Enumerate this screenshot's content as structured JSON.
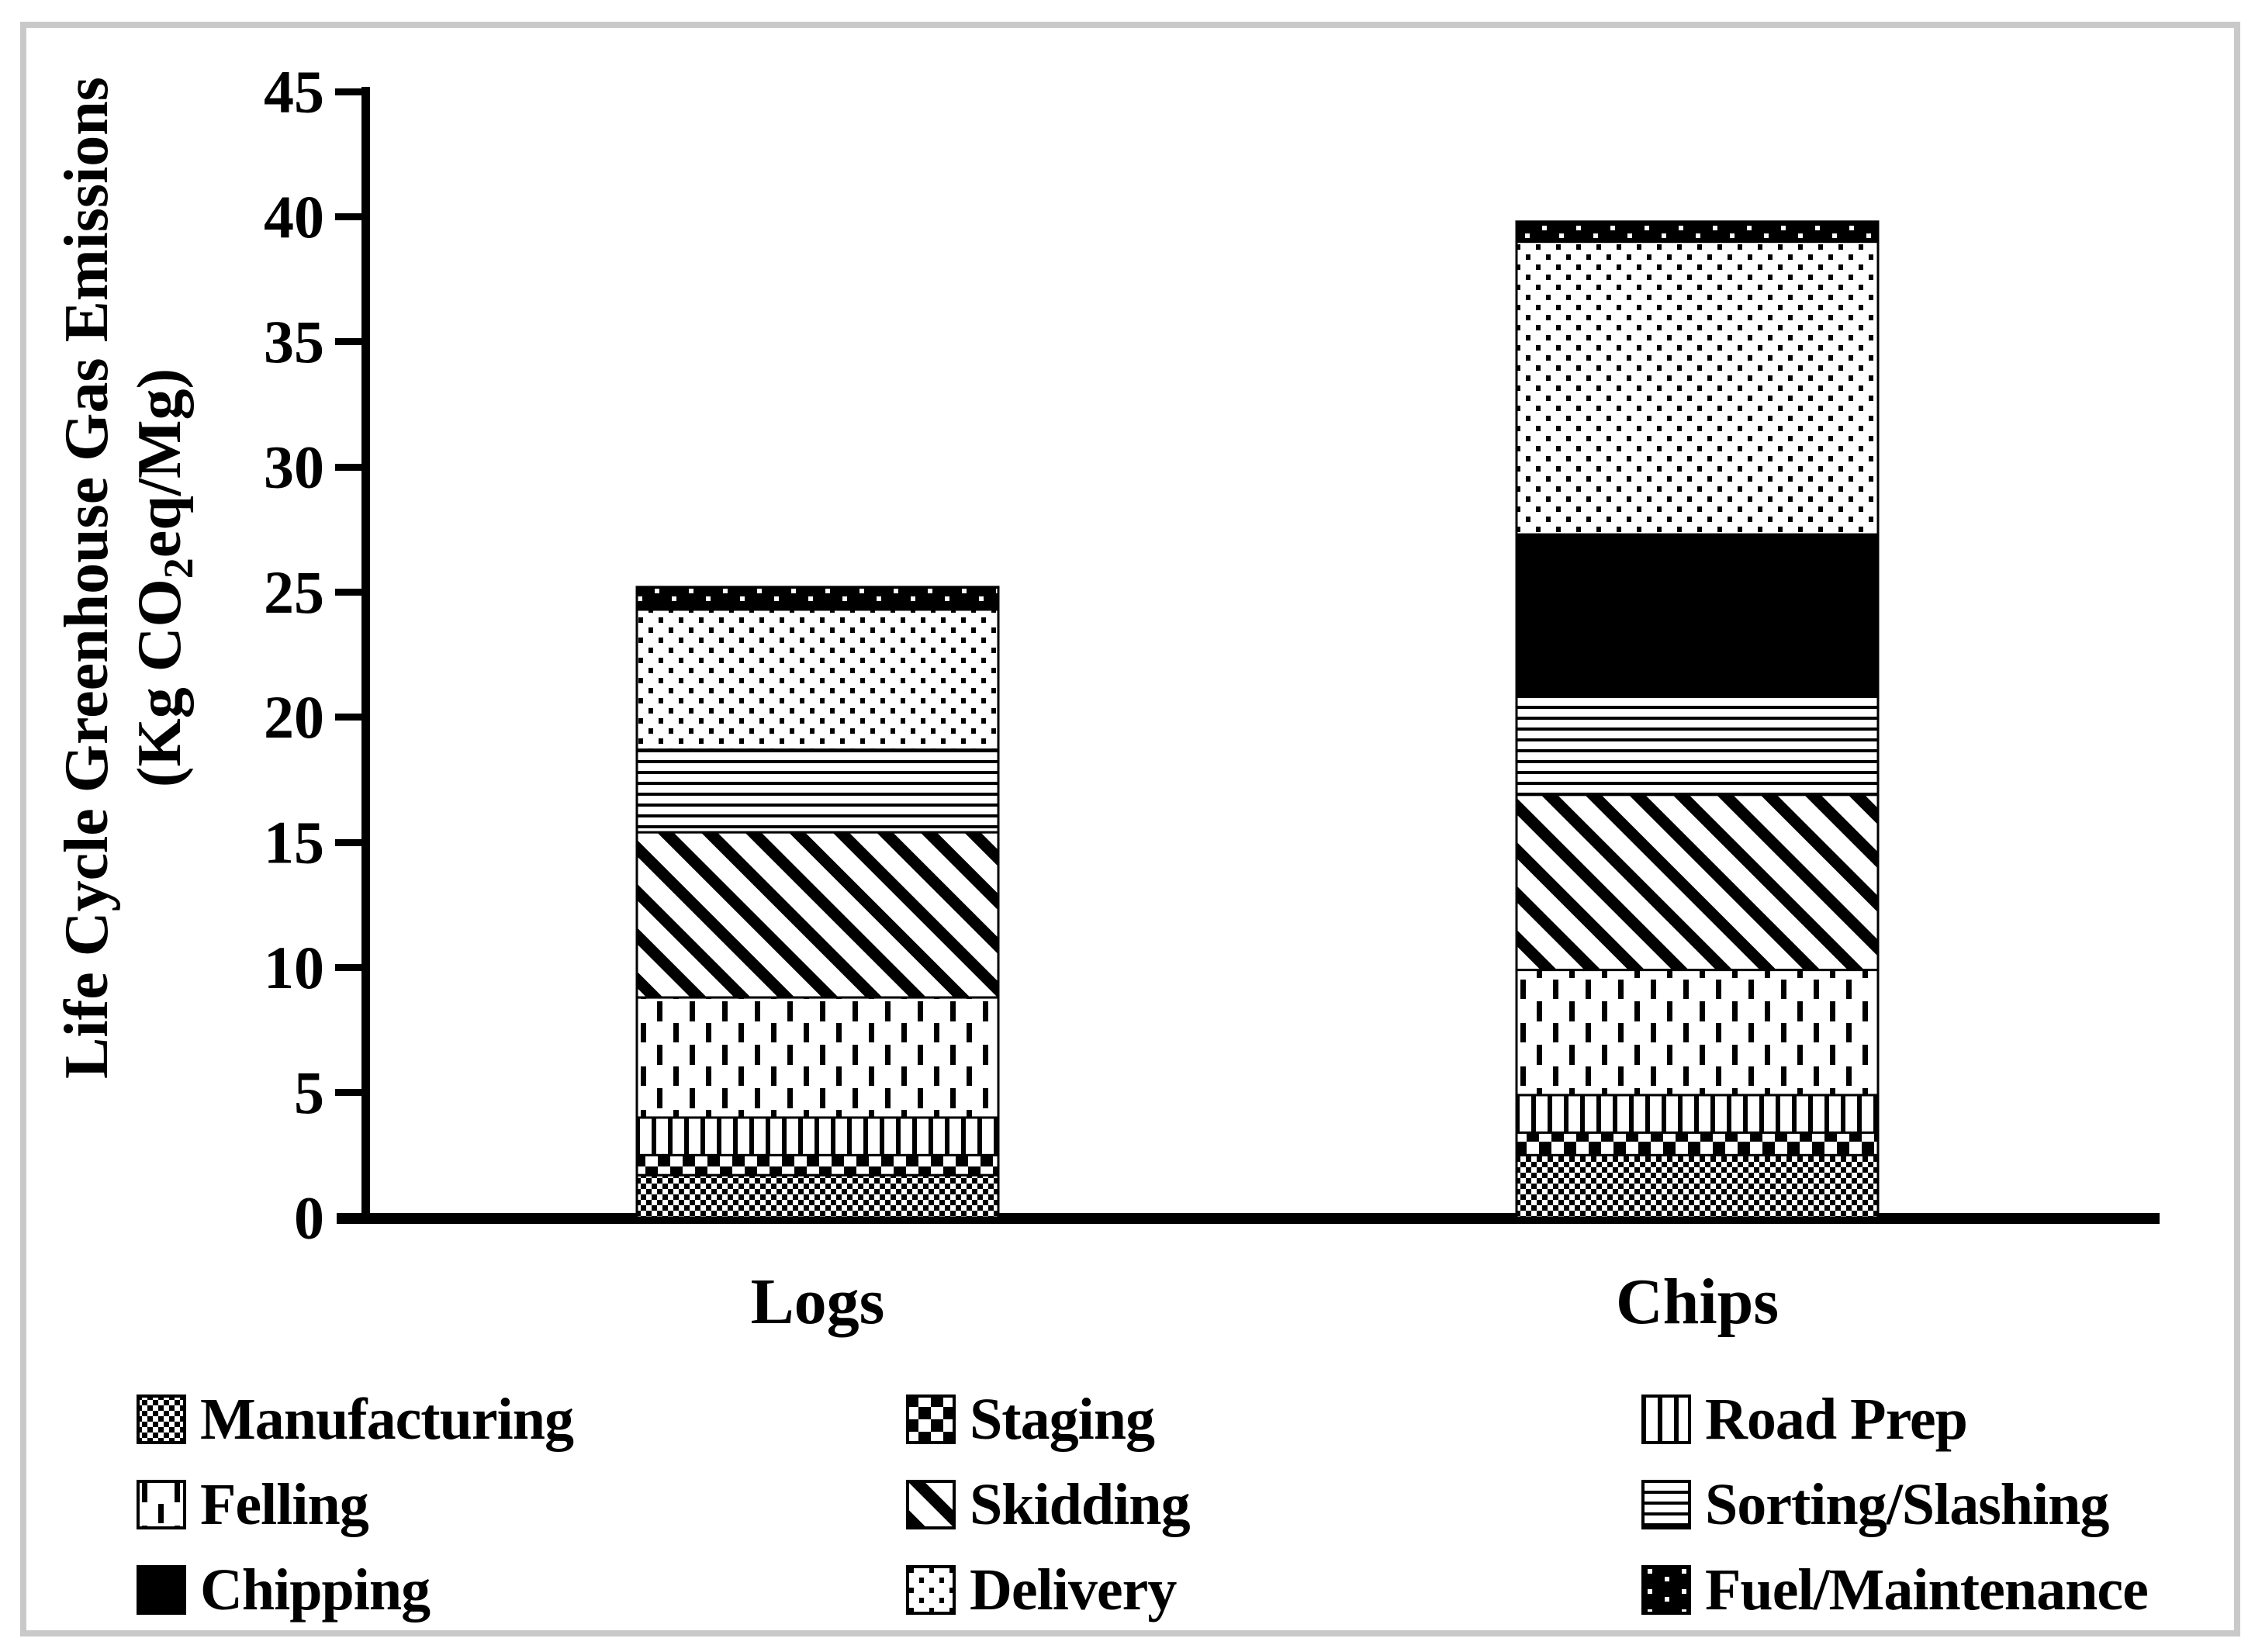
{
  "figure": {
    "y_axis_title_line1": "Life Cycle Greenhouse Gas Emissions",
    "y_axis_title_line2_prefix": "(Kg CO",
    "y_axis_title_line2_sub": "2",
    "y_axis_title_line2_suffix": "eq/Mg)",
    "background_color": "#ffffff",
    "frame_color": "#c9c9c9",
    "ink_color": "#000000"
  },
  "chart_data": {
    "type": "bar",
    "stacked": true,
    "title": "",
    "xlabel": "",
    "ylabel": "Life Cycle Greenhouse Gas Emissions (Kg CO2eq/Mg)",
    "ylim": [
      0,
      45
    ],
    "ytick_step": 5,
    "yticks": [
      0,
      5,
      10,
      15,
      20,
      25,
      30,
      35,
      40,
      45
    ],
    "grid": false,
    "legend_position": "bottom",
    "categories": [
      "Logs",
      "Chips"
    ],
    "series": [
      {
        "name": "Manufacturing",
        "pattern": "fine-checker",
        "values": [
          1.7,
          2.5
        ]
      },
      {
        "name": "Staging",
        "pattern": "large-checker",
        "values": [
          0.8,
          0.9
        ]
      },
      {
        "name": "Road Prep",
        "pattern": "vertical-lines",
        "values": [
          1.5,
          1.5
        ]
      },
      {
        "name": "Felling",
        "pattern": "dashed-vertical",
        "values": [
          4.8,
          5.0
        ]
      },
      {
        "name": "Skidding",
        "pattern": "diagonal-stripes",
        "values": [
          6.6,
          7.0
        ]
      },
      {
        "name": "Sorting/Slashing",
        "pattern": "horizontal-lines",
        "values": [
          3.3,
          4.0
        ]
      },
      {
        "name": "Chipping",
        "pattern": "solid-black",
        "values": [
          0,
          6.4
        ]
      },
      {
        "name": "Delivery",
        "pattern": "black-dots-on-white",
        "values": [
          5.6,
          11.7
        ]
      },
      {
        "name": "Fuel/Maintenance",
        "pattern": "white-dots-on-black",
        "values": [
          0.9,
          0.8
        ]
      }
    ],
    "totals": [
      25.2,
      39.8
    ]
  }
}
